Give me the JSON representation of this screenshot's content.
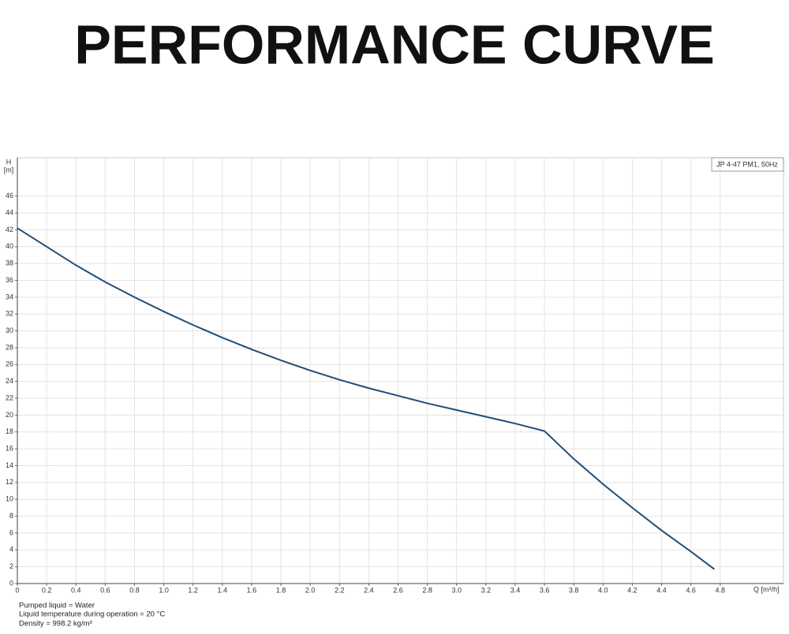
{
  "chart_data": {
    "type": "line",
    "title": "PERFORMANCE CURVE",
    "y_label_name": "H",
    "y_label_unit": "[m]",
    "x_label": "Q [m³/h]",
    "legend_box": "JP 4-47 PM1, 50Hz",
    "notes": [
      "Pumped liquid = Water",
      "Liquid temperature during operation = 20 °C",
      "Density = 998.2 kg/m³"
    ],
    "xlim": [
      0,
      5.2
    ],
    "ylim": [
      0,
      50
    ],
    "grid": true,
    "xticks": [
      0,
      0.2,
      0.4,
      0.6,
      0.8,
      {
        "value": 1,
        "label": "1.0"
      },
      1.2,
      1.4,
      1.6,
      1.8,
      {
        "value": 2,
        "label": "2.0"
      },
      2.2,
      2.4,
      2.6,
      2.8,
      {
        "value": 3,
        "label": "3.0"
      },
      3.2,
      3.4,
      3.6,
      3.8,
      {
        "value": 4,
        "label": "4.0"
      },
      4.2,
      4.4,
      4.6,
      4.8
    ],
    "yticks": [
      0,
      2,
      4,
      6,
      8,
      10,
      12,
      14,
      16,
      18,
      20,
      22,
      24,
      26,
      28,
      30,
      32,
      34,
      36,
      38,
      40,
      42,
      44,
      46
    ],
    "series": [
      {
        "name": "JP 4-47 PM1, 50Hz",
        "color": "#1f4e79",
        "x": [
          0,
          0.2,
          0.4,
          0.6,
          0.8,
          1.0,
          1.2,
          1.4,
          1.6,
          1.8,
          2.0,
          2.2,
          2.4,
          2.6,
          2.8,
          3.0,
          3.2,
          3.4,
          3.6,
          3.8,
          4.0,
          4.2,
          4.4,
          4.6,
          4.76
        ],
        "values": [
          42.2,
          40,
          37.8,
          35.8,
          34,
          32.3,
          30.7,
          29.2,
          27.8,
          26.5,
          25.3,
          24.2,
          23.2,
          22.3,
          21.4,
          20.6,
          19.8,
          19,
          18.1,
          14.8,
          11.8,
          9,
          6.3,
          3.8,
          1.7
        ]
      }
    ]
  }
}
